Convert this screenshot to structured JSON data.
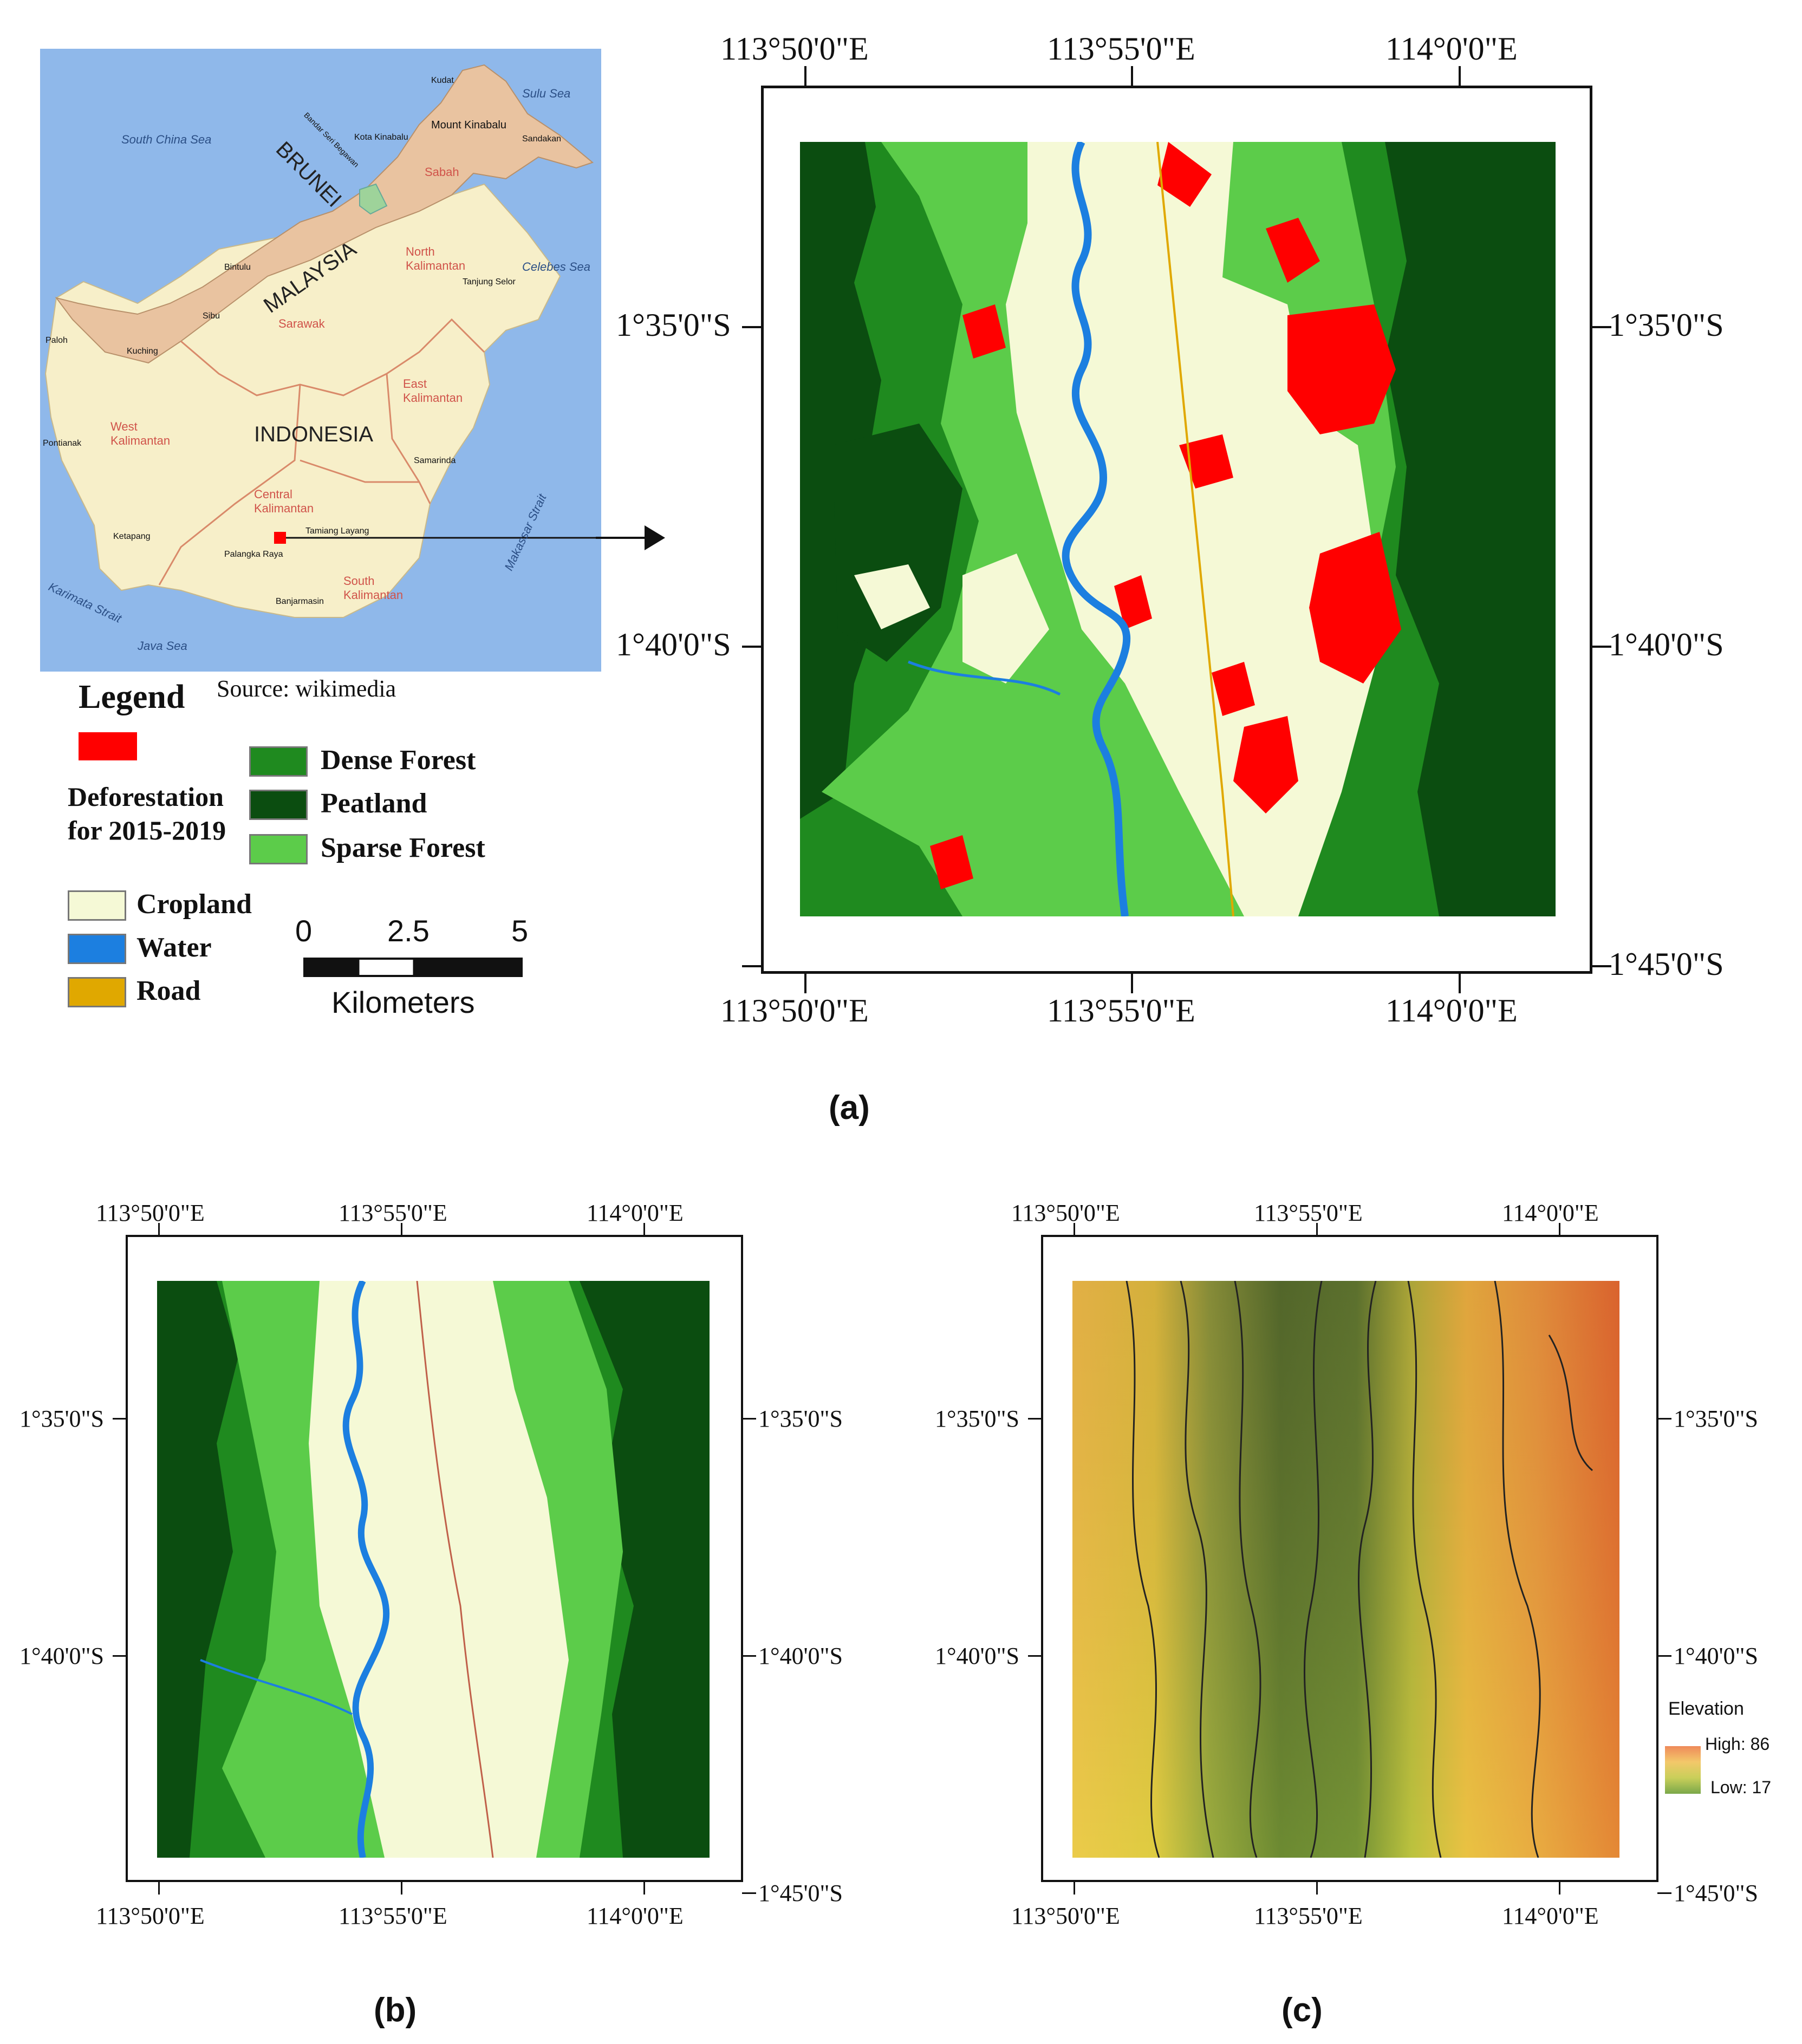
{
  "colors": {
    "deforestation": "#ff0000",
    "dense_forest": "#1f8a1f",
    "peatland": "#0b4d10",
    "sparse_forest": "#5ccc4a",
    "cropland": "#f5f9d6",
    "water": "#1c7fe0",
    "road": "#e0a800",
    "sea": "#8fb8ea",
    "borneo_land": "#f7efc9",
    "malaysia_land": "#e9c3a0"
  },
  "inset_map": {
    "source": "Source: wikimedia",
    "seas": [
      "South China Sea",
      "Sulu Sea",
      "Celebes Sea",
      "Makassar Strait",
      "Karimata Strait",
      "Java Sea"
    ],
    "countries": [
      "BRUNEI",
      "MALAYSIA",
      "INDONESIA"
    ],
    "regions": [
      "Sabah",
      "Sarawak",
      "North Kalimantan",
      "West Kalimantan",
      "East Kalimantan",
      "Central Kalimantan",
      "South Kalimantan"
    ],
    "cities": [
      "Kudat",
      "Mount Kinabalu",
      "Kota Kinabalu",
      "Sandakan",
      "Bandar Seri Begawan",
      "Bintulu",
      "Sibu",
      "Kuching",
      "Paloh",
      "Tanjung Selor",
      "Pontianak",
      "Samarinda",
      "Tamiang Layang",
      "Ketapang",
      "Palangka Raya",
      "Banjarmasin"
    ]
  },
  "legend": {
    "title": "Legend",
    "items": [
      {
        "label": "Deforestation for 2015-2019",
        "color": "#ff0000"
      },
      {
        "label": "Dense Forest",
        "color": "#1f8a1f"
      },
      {
        "label": "Peatland",
        "color": "#0b4d10"
      },
      {
        "label": "Sparse Forest",
        "color": "#5ccc4a"
      },
      {
        "label": "Cropland",
        "color": "#f5f9d6"
      },
      {
        "label": "Water",
        "color": "#1c7fe0"
      },
      {
        "label": "Road",
        "color": "#e0a800"
      }
    ]
  },
  "scale_bar": {
    "ticks": [
      "0",
      "2.5",
      "5"
    ],
    "unit": "Kilometers"
  },
  "axes": {
    "lon": [
      "113°50'0\"E",
      "113°55'0\"E",
      "114°0'0\"E"
    ],
    "lat": [
      "1°35'0\"S",
      "1°40'0\"S",
      "1°45'0\"S"
    ]
  },
  "elevation_legend": {
    "title": "Elevation",
    "high": "High: 86",
    "low": "Low: 17"
  },
  "captions": {
    "a": "(a)",
    "b": "(b)",
    "c": "(c)"
  }
}
